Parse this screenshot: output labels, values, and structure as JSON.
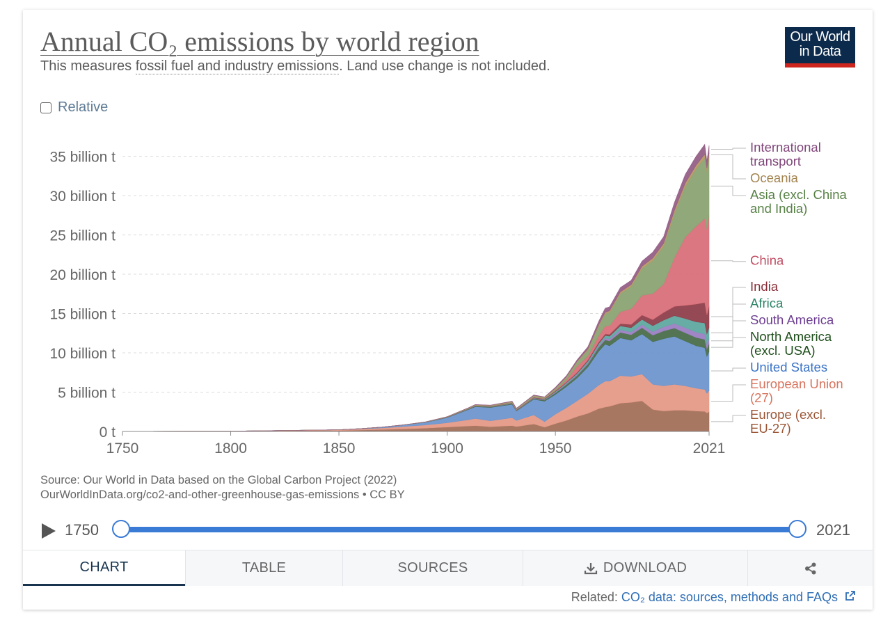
{
  "header": {
    "title": "Annual CO₂ emissions by world region",
    "subtitle_pre": "This measures ",
    "subtitle_link": "fossil fuel and industry emissions",
    "subtitle_post": ". Land use change is not included.",
    "logo_line1": "Our World",
    "logo_line2": "in Data"
  },
  "controls": {
    "relative_label": "Relative"
  },
  "source": {
    "line1": "Source: Our World in Data based on the Global Carbon Project (2022)",
    "line2": "OurWorldInData.org/co2-and-other-greenhouse-gas-emissions • CC BY"
  },
  "timeline": {
    "start": "1750",
    "end": "2021"
  },
  "tabs": [
    {
      "label": "CHART",
      "icon": ""
    },
    {
      "label": "TABLE",
      "icon": ""
    },
    {
      "label": "SOURCES",
      "icon": ""
    },
    {
      "label": "DOWNLOAD",
      "icon": "download-icon"
    },
    {
      "label": "",
      "icon": "share-icon"
    }
  ],
  "related": {
    "prefix": "Related: ",
    "link_text": "CO₂ data: sources, methods and FAQs",
    "icon": "external-link-icon"
  },
  "chart_data": {
    "type": "area",
    "stacked": true,
    "unit": "billion t",
    "x": [
      1750,
      1800,
      1850,
      1860,
      1870,
      1880,
      1890,
      1900,
      1910,
      1913,
      1920,
      1930,
      1932,
      1940,
      1945,
      1950,
      1955,
      1960,
      1965,
      1970,
      1973,
      1975,
      1980,
      1985,
      1990,
      1995,
      2000,
      2005,
      2010,
      2015,
      2019,
      2020,
      2021
    ],
    "series": [
      {
        "name": "Europe (excl. EU-27)",
        "label_lines": [
          "Europe (excl.",
          "EU-27)"
        ],
        "color": "#a2705a",
        "label_color": "#9a5636",
        "values": [
          0.01,
          0.03,
          0.12,
          0.18,
          0.25,
          0.33,
          0.42,
          0.56,
          0.7,
          0.75,
          0.6,
          0.75,
          0.62,
          0.95,
          0.55,
          1.0,
          1.4,
          1.9,
          2.3,
          2.9,
          3.1,
          3.2,
          3.6,
          3.7,
          3.9,
          2.8,
          2.6,
          2.7,
          2.7,
          2.6,
          2.55,
          2.35,
          2.5
        ]
      },
      {
        "name": "European Union (27)",
        "label_lines": [
          "European Union",
          "(27)"
        ],
        "color": "#e59a86",
        "label_color": "#d8735d",
        "values": [
          0.0,
          0.01,
          0.08,
          0.13,
          0.2,
          0.3,
          0.4,
          0.55,
          0.8,
          0.9,
          0.75,
          1.0,
          0.78,
          1.15,
          0.7,
          1.2,
          1.6,
          2.0,
          2.5,
          3.0,
          3.3,
          3.2,
          3.5,
          3.3,
          3.4,
          3.2,
          3.2,
          3.3,
          3.1,
          2.9,
          2.8,
          2.5,
          2.7
        ]
      },
      {
        "name": "United States",
        "label_lines": [
          "United States"
        ],
        "color": "#6e96cf",
        "label_color": "#3a73c6",
        "values": [
          0.0,
          0.0,
          0.02,
          0.05,
          0.1,
          0.2,
          0.35,
          0.65,
          1.3,
          1.5,
          1.7,
          1.7,
          1.2,
          2.0,
          2.6,
          2.5,
          2.7,
          2.9,
          3.4,
          4.3,
          4.7,
          4.5,
          4.8,
          4.6,
          5.1,
          5.4,
          6.0,
          6.1,
          5.7,
          5.4,
          5.3,
          4.7,
          5.0
        ]
      },
      {
        "name": "North America (excl. USA)",
        "label_lines": [
          "North America",
          "(excl. USA)"
        ],
        "color": "#4a6e4b",
        "label_color": "#1e4f1b",
        "values": [
          0.0,
          0.0,
          0.0,
          0.0,
          0.01,
          0.01,
          0.02,
          0.04,
          0.06,
          0.07,
          0.07,
          0.08,
          0.06,
          0.1,
          0.14,
          0.2,
          0.25,
          0.3,
          0.38,
          0.5,
          0.55,
          0.6,
          0.7,
          0.7,
          0.8,
          0.85,
          0.98,
          1.05,
          1.05,
          1.05,
          1.06,
          0.95,
          1.0
        ]
      },
      {
        "name": "South America",
        "label_lines": [
          "South America"
        ],
        "color": "#9b7fc2",
        "label_color": "#6d3e91",
        "values": [
          0.0,
          0.0,
          0.0,
          0.0,
          0.0,
          0.0,
          0.0,
          0.01,
          0.02,
          0.02,
          0.02,
          0.03,
          0.02,
          0.04,
          0.04,
          0.08,
          0.1,
          0.13,
          0.16,
          0.2,
          0.24,
          0.27,
          0.33,
          0.35,
          0.4,
          0.45,
          0.53,
          0.58,
          0.66,
          0.7,
          0.69,
          0.62,
          0.66
        ]
      },
      {
        "name": "Africa",
        "label_lines": [
          "Africa"
        ],
        "color": "#5fa9a1",
        "label_color": "#2c8465",
        "values": [
          0.0,
          0.0,
          0.0,
          0.0,
          0.0,
          0.0,
          0.0,
          0.01,
          0.02,
          0.02,
          0.02,
          0.03,
          0.03,
          0.04,
          0.06,
          0.1,
          0.13,
          0.16,
          0.2,
          0.27,
          0.32,
          0.35,
          0.5,
          0.55,
          0.65,
          0.75,
          0.85,
          1.0,
          1.15,
          1.3,
          1.4,
          1.3,
          1.4
        ]
      },
      {
        "name": "India",
        "label_lines": [
          "India"
        ],
        "color": "#8e3f4b",
        "label_color": "#883039",
        "values": [
          0.0,
          0.0,
          0.0,
          0.0,
          0.0,
          0.01,
          0.01,
          0.02,
          0.03,
          0.03,
          0.03,
          0.04,
          0.04,
          0.05,
          0.06,
          0.07,
          0.08,
          0.11,
          0.15,
          0.18,
          0.2,
          0.22,
          0.28,
          0.41,
          0.56,
          0.78,
          0.98,
          1.18,
          1.68,
          2.25,
          2.6,
          2.4,
          2.7
        ]
      },
      {
        "name": "China",
        "label_lines": [
          "China"
        ],
        "color": "#d9707a",
        "label_color": "#c15065",
        "values": [
          0.0,
          0.0,
          0.0,
          0.0,
          0.0,
          0.0,
          0.0,
          0.0,
          0.01,
          0.01,
          0.02,
          0.03,
          0.03,
          0.05,
          0.04,
          0.08,
          0.25,
          0.8,
          0.5,
          0.8,
          1.0,
          1.1,
          1.5,
          2.0,
          2.5,
          3.3,
          3.6,
          6.2,
          8.7,
          9.9,
          10.7,
          10.9,
          11.5
        ]
      },
      {
        "name": "Asia (excl. China and India)",
        "label_lines": [
          "Asia (excl. China",
          "and India)"
        ],
        "color": "#8aa373",
        "label_color": "#578145",
        "values": [
          0.0,
          0.0,
          0.0,
          0.0,
          0.0,
          0.0,
          0.01,
          0.02,
          0.05,
          0.06,
          0.07,
          0.1,
          0.09,
          0.15,
          0.1,
          0.2,
          0.32,
          0.5,
          0.75,
          1.25,
          1.55,
          1.7,
          2.3,
          2.8,
          3.4,
          4.2,
          4.8,
          5.6,
          6.4,
          7.3,
          7.7,
          7.3,
          7.5
        ]
      },
      {
        "name": "Oceania",
        "label_lines": [
          "Oceania"
        ],
        "color": "#b89966",
        "label_color": "#a2844f",
        "values": [
          0.0,
          0.0,
          0.0,
          0.0,
          0.0,
          0.0,
          0.01,
          0.02,
          0.03,
          0.04,
          0.04,
          0.05,
          0.04,
          0.06,
          0.07,
          0.08,
          0.1,
          0.12,
          0.15,
          0.18,
          0.2,
          0.21,
          0.24,
          0.26,
          0.3,
          0.33,
          0.38,
          0.42,
          0.46,
          0.46,
          0.47,
          0.45,
          0.46
        ]
      },
      {
        "name": "International transport",
        "label_lines": [
          "International",
          "transport"
        ],
        "color": "#955f87",
        "label_color": "#80467a",
        "values": [
          0.0,
          0.0,
          0.0,
          0.0,
          0.0,
          0.0,
          0.0,
          0.01,
          0.02,
          0.03,
          0.03,
          0.04,
          0.04,
          0.05,
          0.04,
          0.1,
          0.13,
          0.18,
          0.28,
          0.42,
          0.52,
          0.5,
          0.55,
          0.55,
          0.65,
          0.75,
          0.85,
          1.0,
          1.1,
          1.15,
          1.25,
          0.9,
          0.95
        ]
      }
    ],
    "title": "Annual CO₂ emissions by world region",
    "y_ticks": [
      {
        "value": 0,
        "label": "0 t"
      },
      {
        "value": 5,
        "label": "5 billion t"
      },
      {
        "value": 10,
        "label": "10 billion t"
      },
      {
        "value": 15,
        "label": "15 billion t"
      },
      {
        "value": 20,
        "label": "20 billion t"
      },
      {
        "value": 25,
        "label": "25 billion t"
      },
      {
        "value": 30,
        "label": "30 billion t"
      },
      {
        "value": 35,
        "label": "35 billion t"
      }
    ],
    "x_ticks": [
      {
        "value": 1750,
        "label": "1750"
      },
      {
        "value": 1800,
        "label": "1800"
      },
      {
        "value": 1850,
        "label": "1850"
      },
      {
        "value": 1900,
        "label": "1900"
      },
      {
        "value": 1950,
        "label": "1950"
      },
      {
        "value": 2021,
        "label": "2021"
      }
    ],
    "ylim": [
      0,
      37
    ],
    "xlim": [
      1750,
      2021
    ],
    "grid": true,
    "legend": "right"
  }
}
